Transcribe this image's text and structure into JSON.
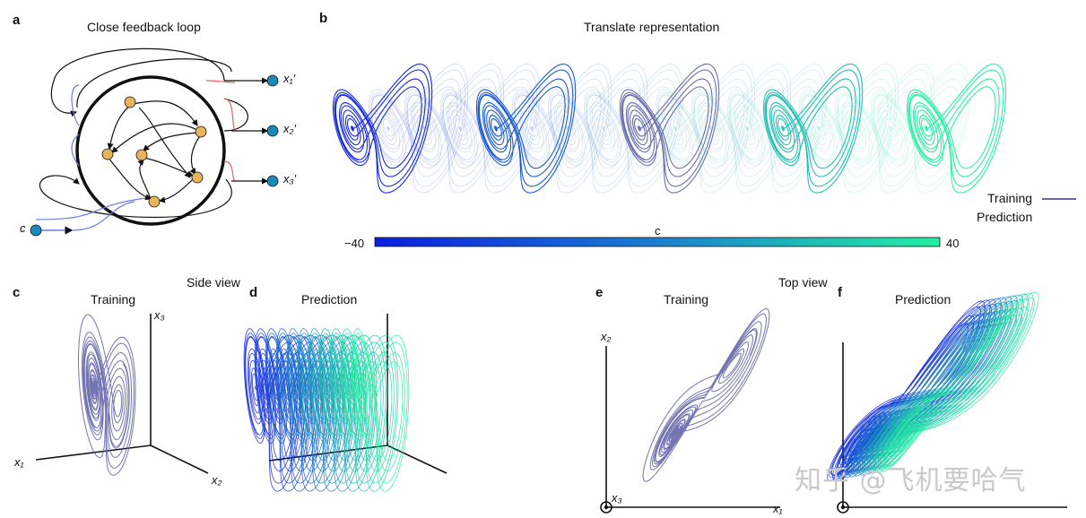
{
  "panels": {
    "a": {
      "label": "a",
      "title": "Close feedback loop",
      "outputs": [
        "x₁′",
        "x₂′",
        "x₃′"
      ],
      "input": "c"
    },
    "b": {
      "label": "b",
      "title": "Translate representation"
    },
    "c": {
      "label": "c",
      "title": "Training",
      "axes": [
        "x₁",
        "x₂",
        "x₃"
      ]
    },
    "d": {
      "label": "d",
      "title": "Prediction"
    },
    "e": {
      "label": "e",
      "title": "Training",
      "axes": [
        "x₁",
        "x₂",
        "x₃"
      ]
    },
    "f": {
      "label": "f",
      "title": "Prediction"
    }
  },
  "group_titles": {
    "side": "Side view",
    "top": "Top view"
  },
  "legend": {
    "training": "Training",
    "prediction": "Prediction"
  },
  "colorbar": {
    "label": "c",
    "min_label": "−40",
    "max_label": "40",
    "min": -40,
    "max": 40
  },
  "colors": {
    "training": "#6466a8",
    "pred_start": "#0a1fe0",
    "pred_end": "#21f0a0",
    "node": "#e9b35a",
    "output_node": "#1a8ab8",
    "feedback_blue": "#6f7ae0",
    "feedback_red": "#e06464"
  },
  "watermark": "知乎 @飞机要哈气"
}
